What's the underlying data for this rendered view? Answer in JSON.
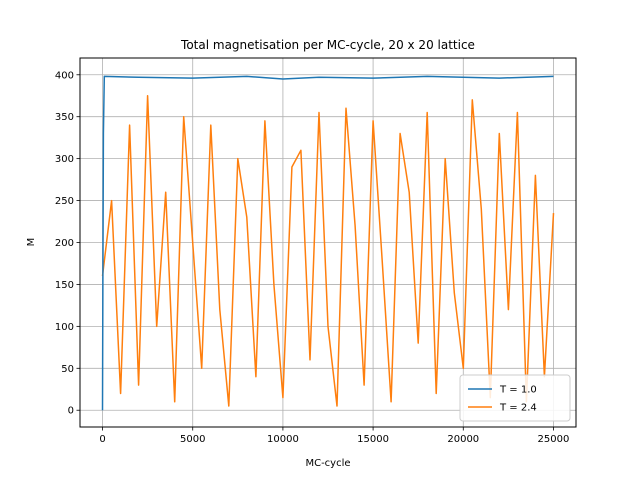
{
  "chart_data": {
    "type": "line",
    "title": "Total magnetisation per MC-cycle, 20 x 20 lattice",
    "xlabel": "MC-cycle",
    "ylabel": "M",
    "xlim": [
      -1250,
      26250
    ],
    "ylim": [
      -20,
      420
    ],
    "xticks": [
      0,
      5000,
      10000,
      15000,
      20000,
      25000
    ],
    "yticks": [
      0,
      50,
      100,
      150,
      200,
      250,
      300,
      350,
      400
    ],
    "grid": true,
    "legend_position": "bottom-right",
    "series": [
      {
        "name": "T = 1.0",
        "color": "#1f77b4",
        "x": [
          0,
          20,
          50,
          100,
          2000,
          5000,
          8000,
          10000,
          12000,
          15000,
          18000,
          20000,
          22000,
          25000
        ],
        "y": [
          0,
          160,
          330,
          398,
          397,
          396,
          398,
          395,
          397,
          396,
          398,
          397,
          396,
          398
        ]
      },
      {
        "name": "T = 2.4",
        "color": "#ff7f0e",
        "x": [
          0,
          500,
          1000,
          1500,
          2000,
          2500,
          3000,
          3500,
          4000,
          4500,
          5000,
          5500,
          6000,
          6500,
          7000,
          7500,
          8000,
          8500,
          9000,
          9500,
          10000,
          10500,
          11000,
          11500,
          12000,
          12500,
          13000,
          13500,
          14000,
          14500,
          15000,
          15500,
          16000,
          16500,
          17000,
          17500,
          18000,
          18500,
          19000,
          19500,
          20000,
          20500,
          21000,
          21500,
          22000,
          22500,
          23000,
          23500,
          24000,
          24500,
          25000
        ],
        "y": [
          160,
          250,
          20,
          340,
          30,
          375,
          100,
          260,
          10,
          350,
          200,
          50,
          340,
          120,
          5,
          300,
          230,
          40,
          345,
          150,
          15,
          290,
          310,
          60,
          355,
          100,
          5,
          360,
          220,
          30,
          345,
          180,
          10,
          330,
          260,
          80,
          355,
          20,
          300,
          140,
          50,
          370,
          240,
          15,
          330,
          120,
          355,
          10,
          280,
          40,
          235
        ]
      }
    ]
  }
}
